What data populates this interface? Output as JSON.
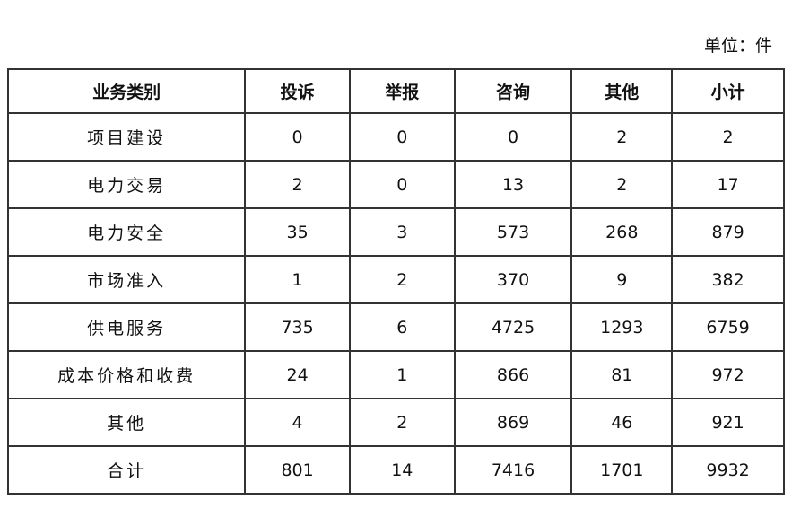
{
  "unit_label": "单位：件",
  "table": {
    "headers": [
      "业务类别",
      "投诉",
      "举报",
      "咨询",
      "其他",
      "小计"
    ],
    "rows": [
      [
        "项目建设",
        "0",
        "0",
        "0",
        "2",
        "2"
      ],
      [
        "电力交易",
        "2",
        "0",
        "13",
        "2",
        "17"
      ],
      [
        "电力安全",
        "35",
        "3",
        "573",
        "268",
        "879"
      ],
      [
        "市场准入",
        "1",
        "2",
        "370",
        "9",
        "382"
      ],
      [
        "供电服务",
        "735",
        "6",
        "4725",
        "1293",
        "6759"
      ],
      [
        "成本价格和收费",
        "24",
        "1",
        "866",
        "81",
        "972"
      ],
      [
        "其他",
        "4",
        "2",
        "869",
        "46",
        "921"
      ],
      [
        "合计",
        "801",
        "14",
        "7416",
        "1701",
        "9932"
      ]
    ]
  }
}
